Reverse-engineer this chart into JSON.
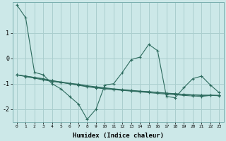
{
  "xlabel": "Humidex (Indice chaleur)",
  "bg_color": "#cce8e8",
  "line_color": "#2d6b5e",
  "grid_color": "#aacece",
  "xlim": [
    -0.5,
    23.5
  ],
  "ylim": [
    -2.5,
    2.2
  ],
  "yticks": [
    -2,
    -1,
    0,
    1
  ],
  "xticks": [
    0,
    1,
    2,
    3,
    4,
    5,
    6,
    7,
    8,
    9,
    10,
    11,
    12,
    13,
    14,
    15,
    16,
    17,
    18,
    19,
    20,
    21,
    22,
    23
  ],
  "lines": [
    [
      2.1,
      1.6,
      -0.55,
      -0.65,
      -1.0,
      -1.2,
      -1.5,
      -1.8,
      -2.4,
      -2.0,
      -1.05,
      -1.0,
      -0.55,
      -0.05,
      0.05,
      0.55,
      0.3,
      -1.5,
      -1.55,
      -1.15,
      -0.8,
      -0.7,
      -1.05,
      -1.35
    ],
    [
      -0.65,
      -0.72,
      -0.78,
      -0.85,
      -0.91,
      -0.95,
      -1.0,
      -1.05,
      -1.1,
      -1.15,
      -1.18,
      -1.22,
      -1.25,
      -1.28,
      -1.3,
      -1.32,
      -1.35,
      -1.38,
      -1.4,
      -1.42,
      -1.44,
      -1.45,
      -1.45,
      -1.46
    ],
    [
      -0.65,
      -0.7,
      -0.75,
      -0.8,
      -0.88,
      -0.93,
      -0.98,
      -1.02,
      -1.08,
      -1.12,
      -1.16,
      -1.2,
      -1.23,
      -1.26,
      -1.29,
      -1.31,
      -1.34,
      -1.37,
      -1.39,
      -1.42,
      -1.44,
      -1.46,
      -1.46,
      -1.47
    ],
    [
      -0.65,
      -0.7,
      -0.76,
      -0.82,
      -0.88,
      -0.94,
      -1.0,
      -1.06,
      -1.12,
      -1.16,
      -1.2,
      -1.23,
      -1.26,
      -1.29,
      -1.32,
      -1.35,
      -1.38,
      -1.41,
      -1.43,
      -1.46,
      -1.48,
      -1.5,
      -1.46,
      -1.46
    ]
  ]
}
